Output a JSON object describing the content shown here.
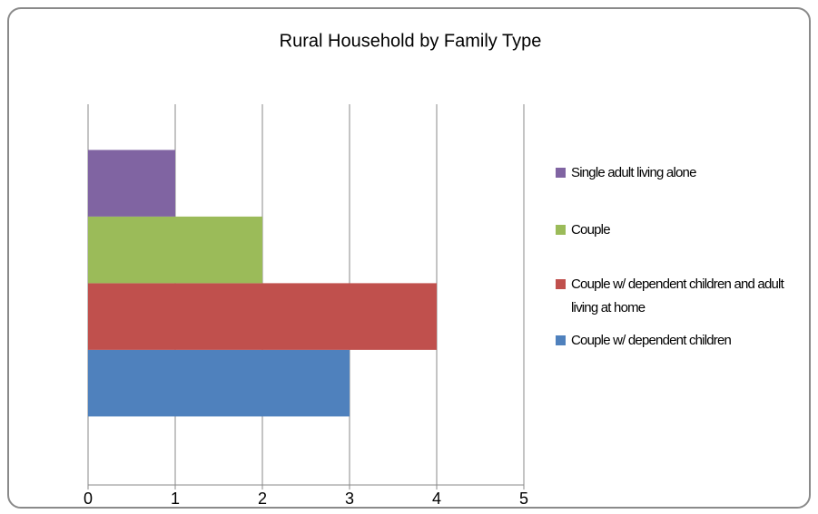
{
  "chart_data": {
    "type": "bar",
    "orientation": "horizontal",
    "title": "Rural Household by Family Type",
    "categories": [
      null
    ],
    "series": [
      {
        "name": "Couple w/ dependent children",
        "color": "#4f81bd",
        "values": [
          3
        ]
      },
      {
        "name": "Couple w/ dependent children and adult living at home",
        "color": "#c0504d",
        "values": [
          4
        ]
      },
      {
        "name": "Couple",
        "color": "#9bbb59",
        "values": [
          2
        ]
      },
      {
        "name": "Single adult living alone",
        "color": "#8064a2",
        "values": [
          1
        ]
      }
    ],
    "xlim": [
      0,
      5
    ],
    "xticks": [
      0,
      1,
      2,
      3,
      4,
      5
    ],
    "grid": true,
    "legend": "right"
  }
}
